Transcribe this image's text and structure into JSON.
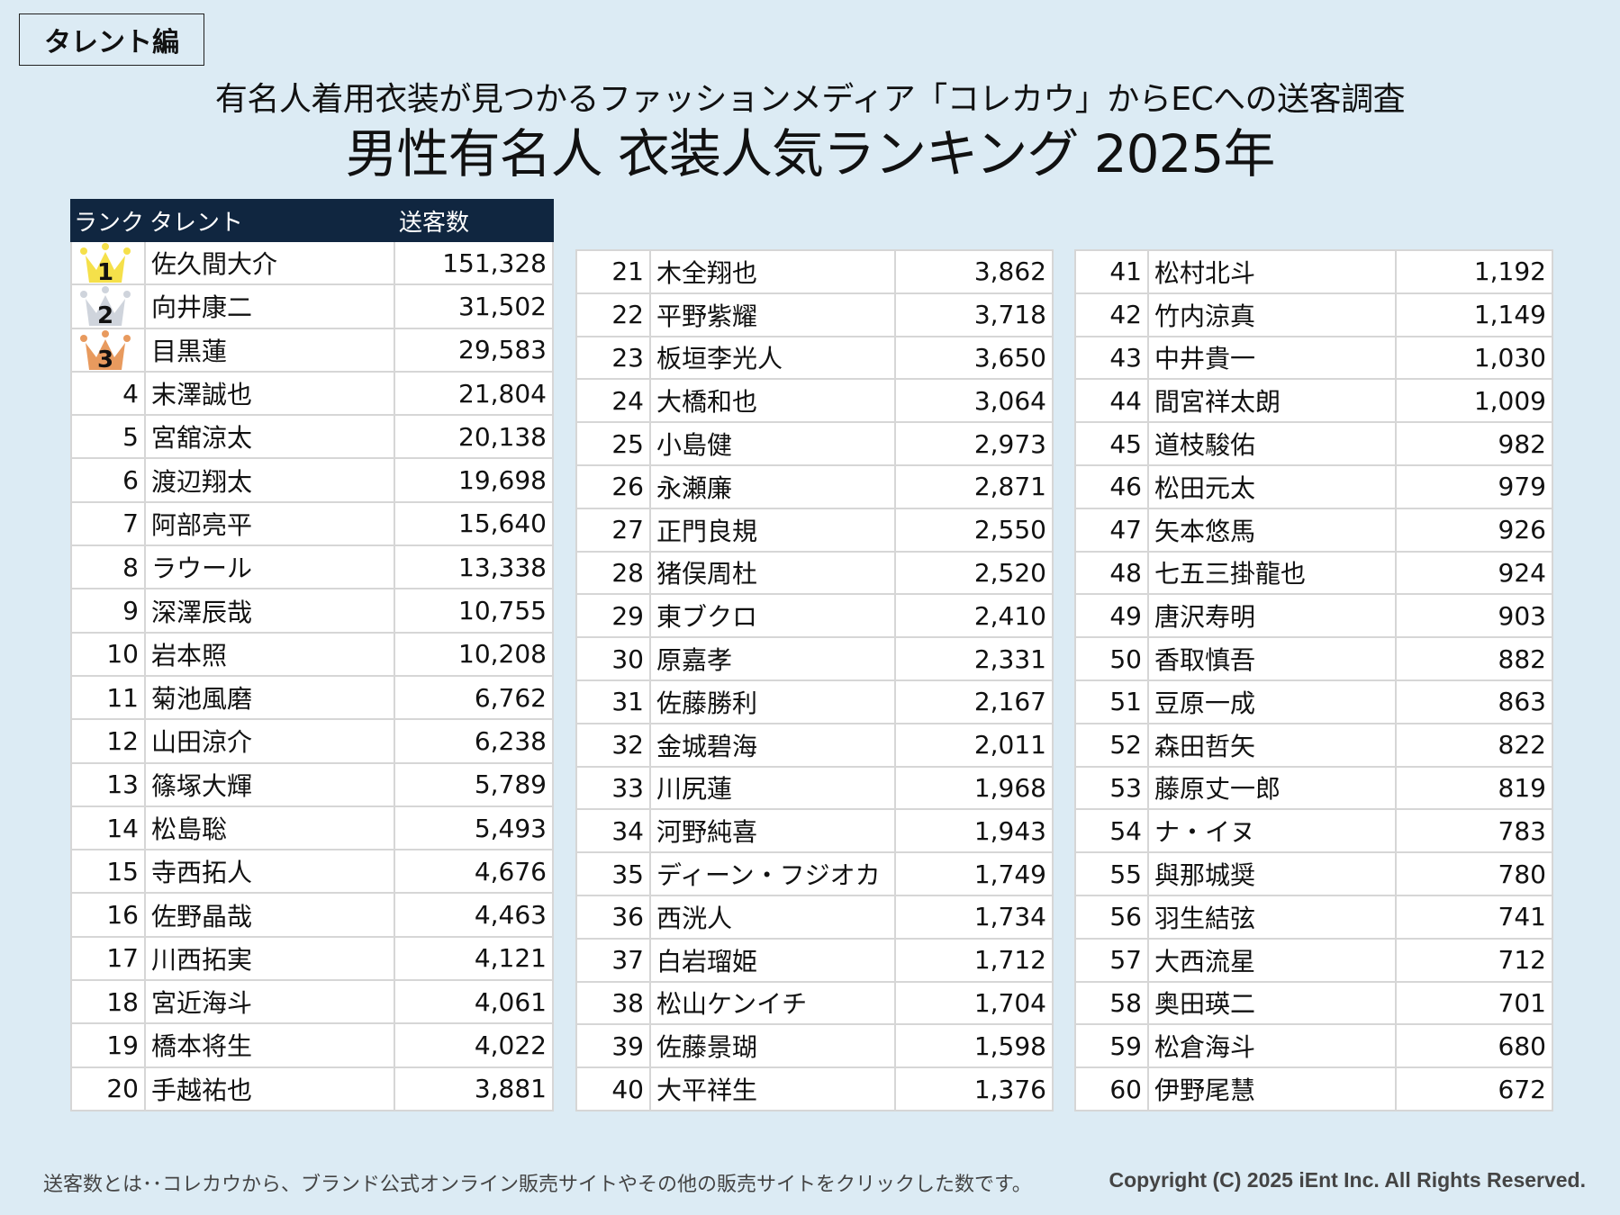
{
  "tag": "タレント編",
  "subtitle": "有名人着用衣装が見つかるファッションメディア「コレカウ」からECへの送客調査",
  "title": "男性有名人 衣装人気ランキング 2025年",
  "table_headers": {
    "rank": "ランク",
    "talent": "タレント",
    "count": "送客数"
  },
  "colors": {
    "background": "#dcebf4",
    "header": "#102640",
    "gold": "#f5e04a",
    "silver": "#cfd4dc",
    "bronze": "#e89a5e"
  },
  "columns": [
    {
      "rows": [
        {
          "rank": "1",
          "name": "佐久間大介",
          "count": "151,328"
        },
        {
          "rank": "2",
          "name": "向井康二",
          "count": "31,502"
        },
        {
          "rank": "3",
          "name": "目黒蓮",
          "count": "29,583"
        },
        {
          "rank": "4",
          "name": "末澤誠也",
          "count": "21,804"
        },
        {
          "rank": "5",
          "name": "宮舘涼太",
          "count": "20,138"
        },
        {
          "rank": "6",
          "name": "渡辺翔太",
          "count": "19,698"
        },
        {
          "rank": "7",
          "name": "阿部亮平",
          "count": "15,640"
        },
        {
          "rank": "8",
          "name": "ラウール",
          "count": "13,338"
        },
        {
          "rank": "9",
          "name": "深澤辰哉",
          "count": "10,755"
        },
        {
          "rank": "10",
          "name": "岩本照",
          "count": "10,208"
        },
        {
          "rank": "11",
          "name": "菊池風磨",
          "count": "6,762"
        },
        {
          "rank": "12",
          "name": "山田涼介",
          "count": "6,238"
        },
        {
          "rank": "13",
          "name": "篠塚大輝",
          "count": "5,789"
        },
        {
          "rank": "14",
          "name": "松島聡",
          "count": "5,493"
        },
        {
          "rank": "15",
          "name": "寺西拓人",
          "count": "4,676"
        },
        {
          "rank": "16",
          "name": "佐野晶哉",
          "count": "4,463"
        },
        {
          "rank": "17",
          "name": "川西拓実",
          "count": "4,121"
        },
        {
          "rank": "18",
          "name": "宮近海斗",
          "count": "4,061"
        },
        {
          "rank": "19",
          "name": "橋本将生",
          "count": "4,022"
        },
        {
          "rank": "20",
          "name": "手越祐也",
          "count": "3,881"
        }
      ]
    },
    {
      "rows": [
        {
          "rank": "21",
          "name": "木全翔也",
          "count": "3,862"
        },
        {
          "rank": "22",
          "name": "平野紫耀",
          "count": "3,718"
        },
        {
          "rank": "23",
          "name": "板垣李光人",
          "count": "3,650"
        },
        {
          "rank": "24",
          "name": "大橋和也",
          "count": "3,064"
        },
        {
          "rank": "25",
          "name": "小島健",
          "count": "2,973"
        },
        {
          "rank": "26",
          "name": "永瀬廉",
          "count": "2,871"
        },
        {
          "rank": "27",
          "name": "正門良規",
          "count": "2,550"
        },
        {
          "rank": "28",
          "name": "猪俣周杜",
          "count": "2,520"
        },
        {
          "rank": "29",
          "name": "東ブクロ",
          "count": "2,410"
        },
        {
          "rank": "30",
          "name": "原嘉孝",
          "count": "2,331"
        },
        {
          "rank": "31",
          "name": "佐藤勝利",
          "count": "2,167"
        },
        {
          "rank": "32",
          "name": "金城碧海",
          "count": "2,011"
        },
        {
          "rank": "33",
          "name": "川尻蓮",
          "count": "1,968"
        },
        {
          "rank": "34",
          "name": "河野純喜",
          "count": "1,943"
        },
        {
          "rank": "35",
          "name": "ディーン・フジオカ",
          "count": "1,749"
        },
        {
          "rank": "36",
          "name": "西洸人",
          "count": "1,734"
        },
        {
          "rank": "37",
          "name": "白岩瑠姫",
          "count": "1,712"
        },
        {
          "rank": "38",
          "name": "松山ケンイチ",
          "count": "1,704"
        },
        {
          "rank": "39",
          "name": "佐藤景瑚",
          "count": "1,598"
        },
        {
          "rank": "40",
          "name": "大平祥生",
          "count": "1,376"
        }
      ]
    },
    {
      "rows": [
        {
          "rank": "41",
          "name": "松村北斗",
          "count": "1,192"
        },
        {
          "rank": "42",
          "name": "竹内涼真",
          "count": "1,149"
        },
        {
          "rank": "43",
          "name": "中井貴一",
          "count": "1,030"
        },
        {
          "rank": "44",
          "name": "間宮祥太朗",
          "count": "1,009"
        },
        {
          "rank": "45",
          "name": "道枝駿佑",
          "count": "982"
        },
        {
          "rank": "46",
          "name": "松田元太",
          "count": "979"
        },
        {
          "rank": "47",
          "name": "矢本悠馬",
          "count": "926"
        },
        {
          "rank": "48",
          "name": "七五三掛龍也",
          "count": "924"
        },
        {
          "rank": "49",
          "name": "唐沢寿明",
          "count": "903"
        },
        {
          "rank": "50",
          "name": "香取慎吾",
          "count": "882"
        },
        {
          "rank": "51",
          "name": "豆原一成",
          "count": "863"
        },
        {
          "rank": "52",
          "name": "森田哲矢",
          "count": "822"
        },
        {
          "rank": "53",
          "name": "藤原丈一郎",
          "count": "819"
        },
        {
          "rank": "54",
          "name": "ナ・イヌ",
          "count": "783"
        },
        {
          "rank": "55",
          "name": "與那城奨",
          "count": "780"
        },
        {
          "rank": "56",
          "name": "羽生結弦",
          "count": "741"
        },
        {
          "rank": "57",
          "name": "大西流星",
          "count": "712"
        },
        {
          "rank": "58",
          "name": "奥田瑛二",
          "count": "701"
        },
        {
          "rank": "59",
          "name": "松倉海斗",
          "count": "680"
        },
        {
          "rank": "60",
          "name": "伊野尾慧",
          "count": "672"
        }
      ]
    }
  ],
  "footer": {
    "note": "送客数とは･･コレカウから、ブランド公式オンライン販売サイトやその他の販売サイトをクリックした数です。",
    "copyright": "Copyright (C) 2025 iEnt Inc. All Rights Reserved."
  },
  "chart_data": {
    "type": "table",
    "title": "男性有名人 衣装人気ランキング 2025年",
    "subtitle": "有名人着用衣装が見つかるファッションメディア「コレカウ」からECへの送客調査",
    "columns": [
      "ランク",
      "タレント",
      "送客数"
    ],
    "categories": [
      "佐久間大介",
      "向井康二",
      "目黒蓮",
      "末澤誠也",
      "宮舘涼太",
      "渡辺翔太",
      "阿部亮平",
      "ラウール",
      "深澤辰哉",
      "岩本照",
      "菊池風磨",
      "山田涼介",
      "篠塚大輝",
      "松島聡",
      "寺西拓人",
      "佐野晶哉",
      "川西拓実",
      "宮近海斗",
      "橋本将生",
      "手越祐也",
      "木全翔也",
      "平野紫耀",
      "板垣李光人",
      "大橋和也",
      "小島健",
      "永瀬廉",
      "正門良規",
      "猪俣周杜",
      "東ブクロ",
      "原嘉孝",
      "佐藤勝利",
      "金城碧海",
      "川尻蓮",
      "河野純喜",
      "ディーン・フジオカ",
      "西洸人",
      "白岩瑠姫",
      "松山ケンイチ",
      "佐藤景瑚",
      "大平祥生",
      "松村北斗",
      "竹内涼真",
      "中井貴一",
      "間宮祥太朗",
      "道枝駿佑",
      "松田元太",
      "矢本悠馬",
      "七五三掛龍也",
      "唐沢寿明",
      "香取慎吾",
      "豆原一成",
      "森田哲矢",
      "藤原丈一郎",
      "ナ・イヌ",
      "與那城奨",
      "羽生結弦",
      "大西流星",
      "奥田瑛二",
      "松倉海斗",
      "伊野尾慧"
    ],
    "values": [
      151328,
      31502,
      29583,
      21804,
      20138,
      19698,
      15640,
      13338,
      10755,
      10208,
      6762,
      6238,
      5789,
      5493,
      4676,
      4463,
      4121,
      4061,
      4022,
      3881,
      3862,
      3718,
      3650,
      3064,
      2973,
      2871,
      2550,
      2520,
      2410,
      2331,
      2167,
      2011,
      1968,
      1943,
      1749,
      1734,
      1712,
      1704,
      1598,
      1376,
      1192,
      1149,
      1030,
      1009,
      982,
      979,
      926,
      924,
      903,
      882,
      863,
      822,
      819,
      783,
      780,
      741,
      712,
      701,
      680,
      672
    ],
    "xlabel": "タレント",
    "ylabel": "送客数"
  }
}
